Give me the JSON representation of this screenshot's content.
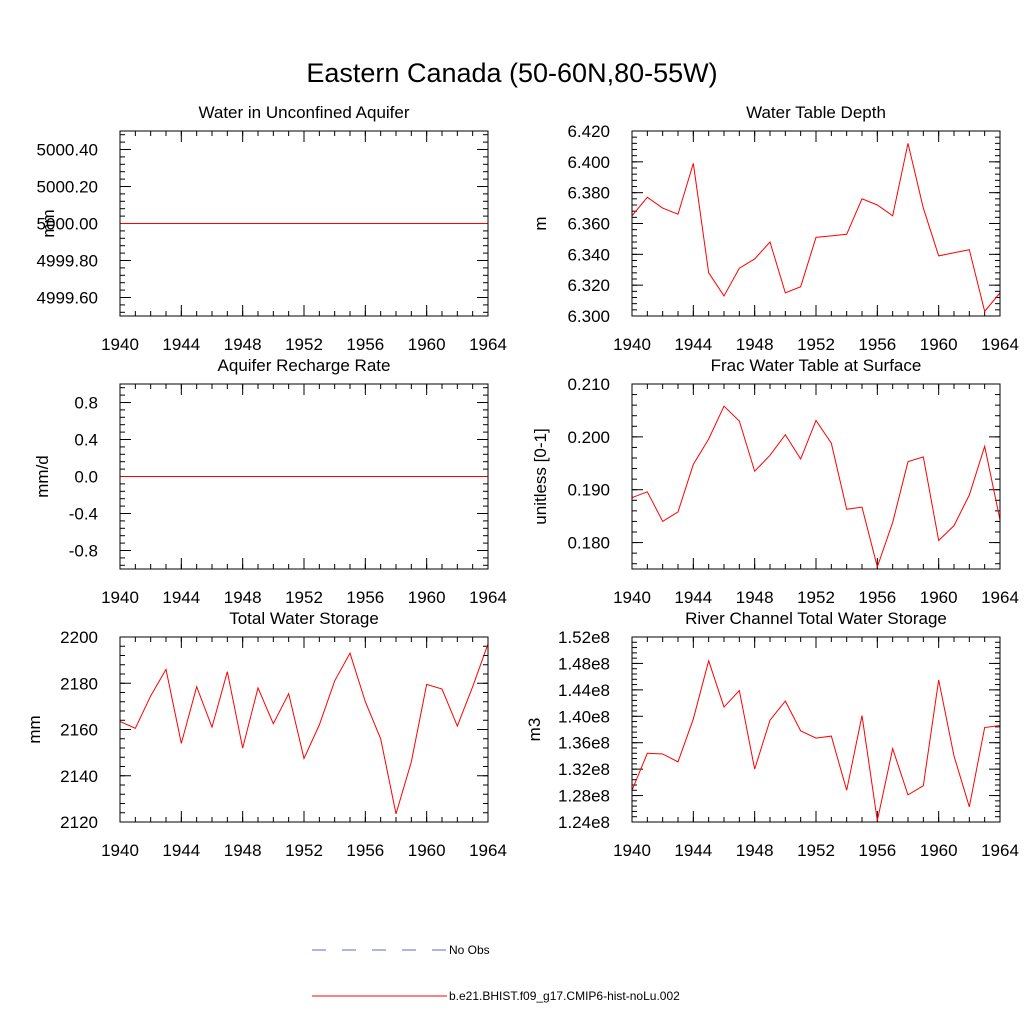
{
  "main_title": "Eastern Canada (50-60N,80-55W)",
  "legend": {
    "entries": [
      {
        "label": "No Obs",
        "color": "#6666cc",
        "dash": true
      },
      {
        "label": "b.e21.BHIST.f09_g17.CMIP6-hist-noLu.002",
        "color": "#ff0000",
        "dash": false
      }
    ]
  },
  "chart_data": [
    {
      "type": "line",
      "title": "Water in Unconfined Aquifer",
      "ylabel": "mm",
      "xlim": [
        1940,
        1964
      ],
      "ylim": [
        4999.5,
        5000.5
      ],
      "xticks": [
        "1940",
        "1944",
        "1948",
        "1952",
        "1956",
        "1960",
        "1964"
      ],
      "yticks": [
        {
          "v": 4999.6,
          "label": "4999.60"
        },
        {
          "v": 4999.8,
          "label": "4999.80"
        },
        {
          "v": 5000.0,
          "label": "5000.00"
        },
        {
          "v": 5000.2,
          "label": "5000.20"
        },
        {
          "v": 5000.4,
          "label": "5000.40"
        }
      ],
      "series": [
        {
          "color": "#ff0000",
          "x": [
            1940,
            1941,
            1942,
            1943,
            1944,
            1945,
            1946,
            1947,
            1948,
            1949,
            1950,
            1951,
            1952,
            1953,
            1954,
            1955,
            1956,
            1957,
            1958,
            1959,
            1960,
            1961,
            1962,
            1963,
            1964
          ],
          "values": [
            5000,
            5000,
            5000,
            5000,
            5000,
            5000,
            5000,
            5000,
            5000,
            5000,
            5000,
            5000,
            5000,
            5000,
            5000,
            5000,
            5000,
            5000,
            5000,
            5000,
            5000,
            5000,
            5000,
            5000,
            5000
          ]
        }
      ]
    },
    {
      "type": "line",
      "title": "Water Table Depth",
      "ylabel": "m",
      "xlim": [
        1940,
        1964
      ],
      "ylim": [
        6.3,
        6.42
      ],
      "xticks": [
        "1940",
        "1944",
        "1948",
        "1952",
        "1956",
        "1960",
        "1964"
      ],
      "yticks": [
        {
          "v": 6.3,
          "label": "6.300"
        },
        {
          "v": 6.32,
          "label": "6.320"
        },
        {
          "v": 6.34,
          "label": "6.340"
        },
        {
          "v": 6.36,
          "label": "6.360"
        },
        {
          "v": 6.38,
          "label": "6.380"
        },
        {
          "v": 6.4,
          "label": "6.400"
        },
        {
          "v": 6.42,
          "label": "6.420"
        }
      ],
      "series": [
        {
          "color": "#ff0000",
          "x": [
            1940,
            1941,
            1942,
            1943,
            1944,
            1945,
            1946,
            1947,
            1948,
            1949,
            1950,
            1951,
            1952,
            1953,
            1954,
            1955,
            1956,
            1957,
            1958,
            1959,
            1960,
            1961,
            1962,
            1963,
            1964
          ],
          "values": [
            6.365,
            6.377,
            6.37,
            6.366,
            6.399,
            6.328,
            6.313,
            6.331,
            6.337,
            6.348,
            6.315,
            6.319,
            6.351,
            6.352,
            6.353,
            6.376,
            6.372,
            6.365,
            6.412,
            6.37,
            6.339,
            6.341,
            6.343,
            6.303,
            6.315
          ]
        }
      ]
    },
    {
      "type": "line",
      "title": "Aquifer Recharge Rate",
      "ylabel": "mm/d",
      "xlim": [
        1940,
        1964
      ],
      "ylim": [
        -1.0,
        1.0
      ],
      "xticks": [
        "1940",
        "1944",
        "1948",
        "1952",
        "1956",
        "1960",
        "1964"
      ],
      "yticks": [
        {
          "v": -0.8,
          "label": "-0.8"
        },
        {
          "v": -0.4,
          "label": "-0.4"
        },
        {
          "v": 0.0,
          "label": "0.0"
        },
        {
          "v": 0.4,
          "label": "0.4"
        },
        {
          "v": 0.8,
          "label": "0.8"
        }
      ],
      "series": [
        {
          "color": "#ff0000",
          "x": [
            1940,
            1941,
            1942,
            1943,
            1944,
            1945,
            1946,
            1947,
            1948,
            1949,
            1950,
            1951,
            1952,
            1953,
            1954,
            1955,
            1956,
            1957,
            1958,
            1959,
            1960,
            1961,
            1962,
            1963,
            1964
          ],
          "values": [
            0,
            0,
            0,
            0,
            0,
            0,
            0,
            0,
            0,
            0,
            0,
            0,
            0,
            0,
            0,
            0,
            0,
            0,
            0,
            0,
            0,
            0,
            0,
            0,
            0
          ]
        }
      ]
    },
    {
      "type": "line",
      "title": "Frac Water Table at Surface",
      "ylabel": "unitless [0-1]",
      "xlim": [
        1940,
        1964
      ],
      "ylim": [
        0.175,
        0.21
      ],
      "xticks": [
        "1940",
        "1944",
        "1948",
        "1952",
        "1956",
        "1960",
        "1964"
      ],
      "yticks": [
        {
          "v": 0.18,
          "label": "0.180"
        },
        {
          "v": 0.19,
          "label": "0.190"
        },
        {
          "v": 0.2,
          "label": "0.200"
        },
        {
          "v": 0.21,
          "label": "0.210"
        }
      ],
      "series": [
        {
          "color": "#ff0000",
          "x": [
            1940,
            1941,
            1942,
            1943,
            1944,
            1945,
            1946,
            1947,
            1948,
            1949,
            1950,
            1951,
            1952,
            1953,
            1954,
            1955,
            1956,
            1957,
            1958,
            1959,
            1960,
            1961,
            1962,
            1963,
            1964
          ],
          "values": [
            0.1885,
            0.1896,
            0.184,
            0.1858,
            0.1948,
            0.1996,
            0.2058,
            0.203,
            0.1935,
            0.1965,
            0.2004,
            0.1958,
            0.2031,
            0.1988,
            0.1863,
            0.1867,
            0.1754,
            0.1838,
            0.1953,
            0.1962,
            0.1804,
            0.1832,
            0.189,
            0.1982,
            0.1843
          ]
        }
      ]
    },
    {
      "type": "line",
      "title": "Total Water Storage",
      "ylabel": "mm",
      "xlim": [
        1940,
        1964
      ],
      "ylim": [
        2120,
        2200
      ],
      "xticks": [
        "1940",
        "1944",
        "1948",
        "1952",
        "1956",
        "1960",
        "1964"
      ],
      "yticks": [
        {
          "v": 2120,
          "label": "2120"
        },
        {
          "v": 2140,
          "label": "2140"
        },
        {
          "v": 2160,
          "label": "2160"
        },
        {
          "v": 2180,
          "label": "2180"
        },
        {
          "v": 2200,
          "label": "2200"
        }
      ],
      "series": [
        {
          "color": "#ff0000",
          "x": [
            1940,
            1941,
            1942,
            1943,
            1944,
            1945,
            1946,
            1947,
            1948,
            1949,
            1950,
            1951,
            1952,
            1953,
            1954,
            1955,
            1956,
            1957,
            1958,
            1959,
            1960,
            1961,
            1962,
            1963,
            1964
          ],
          "values": [
            2163.5,
            2160.5,
            2174.5,
            2186,
            2154,
            2178.5,
            2161,
            2185,
            2152,
            2178,
            2162.5,
            2175.5,
            2147.5,
            2162,
            2181,
            2193,
            2172,
            2156,
            2123.5,
            2146,
            2179.5,
            2177.5,
            2161.5,
            2178.5,
            2197
          ]
        }
      ]
    },
    {
      "type": "line",
      "title": "River Channel Total Water Storage",
      "ylabel": "m3",
      "xlim": [
        1940,
        1964
      ],
      "ylim": [
        124000000.0,
        152000000.0
      ],
      "xticks": [
        "1940",
        "1944",
        "1948",
        "1952",
        "1956",
        "1960",
        "1964"
      ],
      "yticks": [
        {
          "v": 124000000.0,
          "label": "1.24e8"
        },
        {
          "v": 128000000.0,
          "label": "1.28e8"
        },
        {
          "v": 132000000.0,
          "label": "1.32e8"
        },
        {
          "v": 136000000.0,
          "label": "1.36e8"
        },
        {
          "v": 140000000.0,
          "label": "1.40e8"
        },
        {
          "v": 144000000.0,
          "label": "1.44e8"
        },
        {
          "v": 148000000.0,
          "label": "1.48e8"
        },
        {
          "v": 152000000.0,
          "label": "1.52e8"
        }
      ],
      "series": [
        {
          "color": "#ff0000",
          "x": [
            1940,
            1941,
            1942,
            1943,
            1944,
            1945,
            1946,
            1947,
            1948,
            1949,
            1950,
            1951,
            1952,
            1953,
            1954,
            1955,
            1956,
            1957,
            1958,
            1959,
            1960,
            1961,
            1962,
            1963,
            1964
          ],
          "values": [
            128800000.0,
            134400000.0,
            134300000.0,
            133100000.0,
            139600000.0,
            148400000.0,
            141400000.0,
            143900000.0,
            132000000.0,
            139400000.0,
            142300000.0,
            137800000.0,
            136700000.0,
            137000000.0,
            128800000.0,
            140100000.0,
            124200000.0,
            135100000.0,
            128100000.0,
            129500000.0,
            145500000.0,
            134000000.0,
            126300000.0,
            138300000.0,
            138600000.0
          ]
        }
      ]
    }
  ]
}
